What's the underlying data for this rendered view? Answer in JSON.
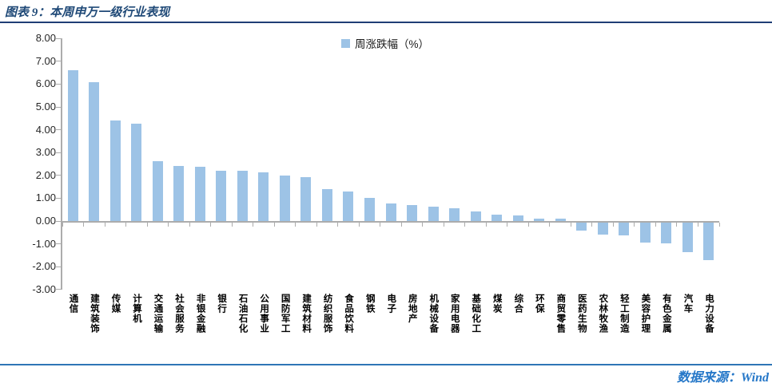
{
  "header": {
    "title": "图表 9：本周申万一级行业表现"
  },
  "footer": {
    "source": "数据来源：Wind"
  },
  "colors": {
    "bar": "#9DC3E6",
    "title_text": "#1F4977",
    "title_rule": "#1F3E75",
    "footer_rule": "#2E75B6",
    "footer_text": "#2577C8",
    "axis": "#ACACAC"
  },
  "chart_data": {
    "type": "bar",
    "title": "本周申万一级行业表现",
    "legend": "周涨跌幅（%）",
    "legend_position": "top-center",
    "grid": false,
    "ylim": [
      -3,
      8
    ],
    "ytick_step": 1,
    "ytick_format": "0.00",
    "bar_color": "#9DC3E6",
    "xlabel": "",
    "ylabel": "",
    "categories": [
      "通信",
      "建筑装饰",
      "传媒",
      "计算机",
      "交通运输",
      "社会服务",
      "非银金融",
      "银行",
      "石油石化",
      "公用事业",
      "国防军工",
      "建筑材料",
      "纺织服饰",
      "食品饮料",
      "钢铁",
      "电子",
      "房地产",
      "机械设备",
      "家用电器",
      "基础化工",
      "煤炭",
      "综合",
      "环保",
      "商贸零售",
      "医药生物",
      "农林牧渔",
      "轻工制造",
      "美容护理",
      "有色金属",
      "汽车",
      "电力设备"
    ],
    "values": [
      6.62,
      6.08,
      4.42,
      4.28,
      2.61,
      2.41,
      2.38,
      2.22,
      2.21,
      2.13,
      2.01,
      1.92,
      1.4,
      1.3,
      1.01,
      0.76,
      0.71,
      0.64,
      0.56,
      0.42,
      0.28,
      0.25,
      0.12,
      0.11,
      -0.36,
      -0.51,
      -0.56,
      -0.87,
      -0.9,
      -1.29,
      -1.65
    ]
  }
}
